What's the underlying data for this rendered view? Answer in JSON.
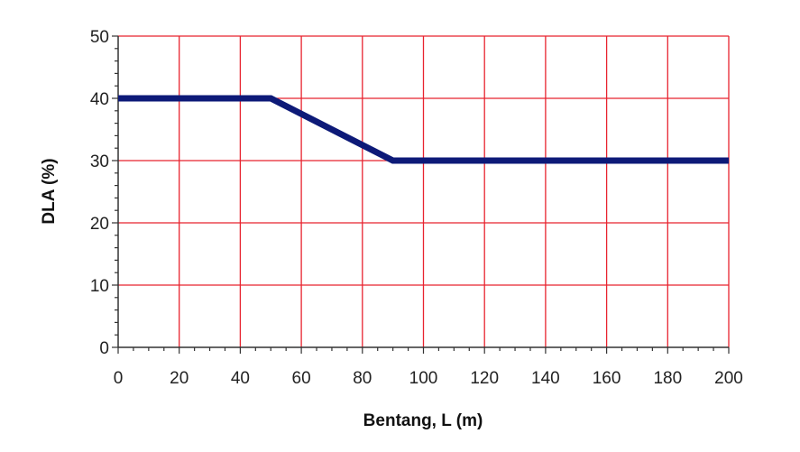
{
  "chart_data": {
    "type": "line",
    "xlabel": "Bentang, L (m)",
    "ylabel": "DLA (%)",
    "xlim": [
      0,
      200
    ],
    "ylim": [
      0,
      50
    ],
    "x_ticks": [
      0,
      20,
      40,
      60,
      80,
      100,
      120,
      140,
      160,
      180,
      200
    ],
    "y_ticks": [
      0,
      10,
      20,
      30,
      40,
      50
    ],
    "x_tick_labels": [
      "0",
      "20",
      "40",
      "60",
      "80",
      "100",
      "120",
      "140",
      "160",
      "180",
      "200"
    ],
    "y_tick_labels": [
      "0",
      "10",
      "20",
      "30",
      "40",
      "50"
    ],
    "grid": true,
    "series": [
      {
        "x": [
          0,
          50,
          90,
          200
        ],
        "y": [
          40,
          40,
          30,
          30
        ]
      }
    ]
  },
  "colors": {
    "grid": "#e8232f",
    "line": "#0d1a78",
    "axis": "#333333"
  }
}
